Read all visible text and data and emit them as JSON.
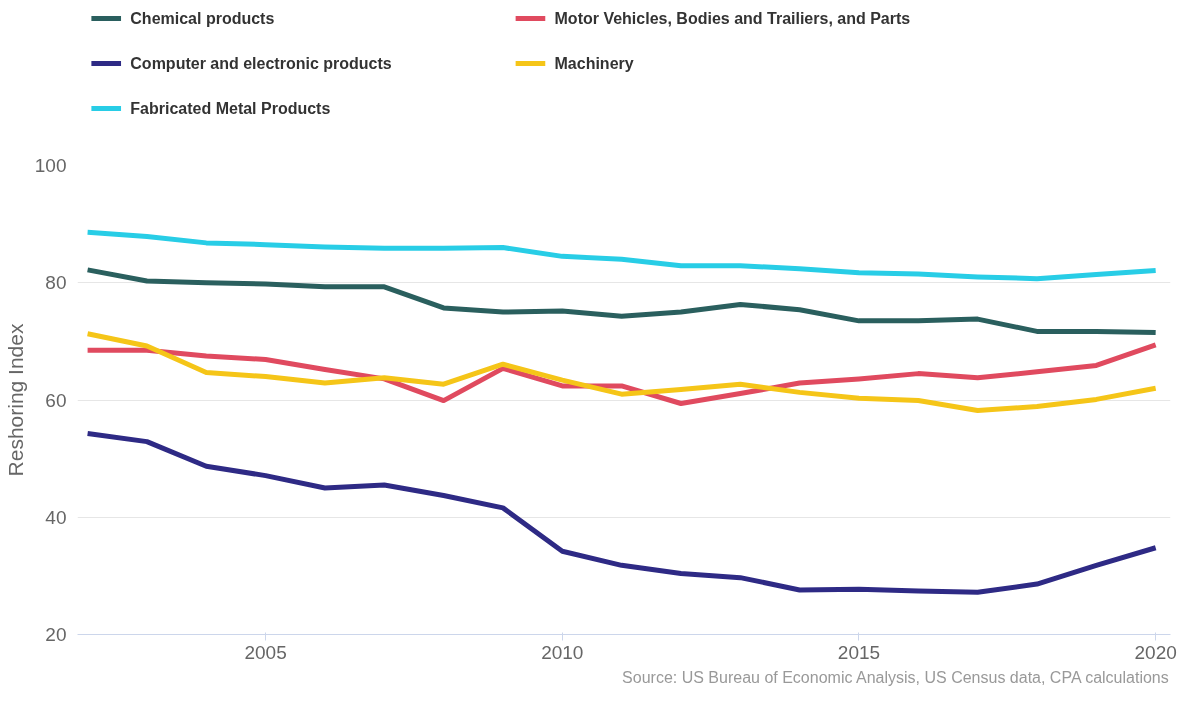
{
  "chart_data": {
    "type": "line",
    "ylabel": "Reshoring Index",
    "x": [
      2002,
      2003,
      2004,
      2005,
      2006,
      2007,
      2008,
      2009,
      2010,
      2011,
      2012,
      2013,
      2014,
      2015,
      2016,
      2017,
      2018,
      2019,
      2020
    ],
    "series": [
      {
        "name": "Chemical products",
        "color": "#2a5f5e",
        "values": [
          82.2,
          80.3,
          80.0,
          79.8,
          79.3,
          79.3,
          75.7,
          75.0,
          75.2,
          74.3,
          75.0,
          76.3,
          75.4,
          73.5,
          73.5,
          73.8,
          71.7,
          71.7,
          71.5
        ]
      },
      {
        "name": "Motor Vehicles, Bodies and Trailiers, and Parts",
        "color": "#e04a5f",
        "values": [
          68.5,
          68.5,
          67.5,
          66.9,
          65.2,
          63.6,
          59.9,
          65.4,
          62.4,
          62.4,
          59.4,
          61.1,
          62.9,
          63.6,
          64.5,
          63.8,
          64.8,
          65.9,
          69.4
        ]
      },
      {
        "name": "Computer and electronic products",
        "color": "#2e2a85",
        "values": [
          54.3,
          52.9,
          48.7,
          47.1,
          45.0,
          45.5,
          43.7,
          41.6,
          34.2,
          31.8,
          30.4,
          29.7,
          27.6,
          27.7,
          27.4,
          27.2,
          28.6,
          31.8,
          34.8
        ]
      },
      {
        "name": "Machinery",
        "color": "#f5c518",
        "values": [
          71.3,
          69.2,
          64.7,
          64.0,
          62.9,
          63.8,
          62.7,
          66.1,
          63.4,
          61.0,
          61.8,
          62.7,
          61.3,
          60.3,
          59.9,
          58.2,
          58.9,
          60.1,
          62.0
        ]
      },
      {
        "name": "Fabricated Metal Products",
        "color": "#28cde6",
        "values": [
          88.6,
          87.9,
          86.8,
          86.5,
          86.1,
          85.9,
          85.9,
          86.0,
          84.5,
          84.0,
          82.9,
          82.9,
          82.4,
          81.7,
          81.5,
          81.0,
          80.7,
          81.4,
          82.1
        ]
      }
    ],
    "xlim": [
      2001.83,
      2020.25
    ],
    "ylim": [
      20,
      100
    ],
    "xticks": [
      2005,
      2010,
      2015,
      2020
    ],
    "yticks": [
      20,
      40,
      60,
      80,
      100
    ],
    "grid": "y",
    "legend": "top",
    "line_style": "solid",
    "marker": "none",
    "annotations": [
      "Source: US Bureau of Economic Analysis, US Census data, CPA calculations"
    ]
  }
}
